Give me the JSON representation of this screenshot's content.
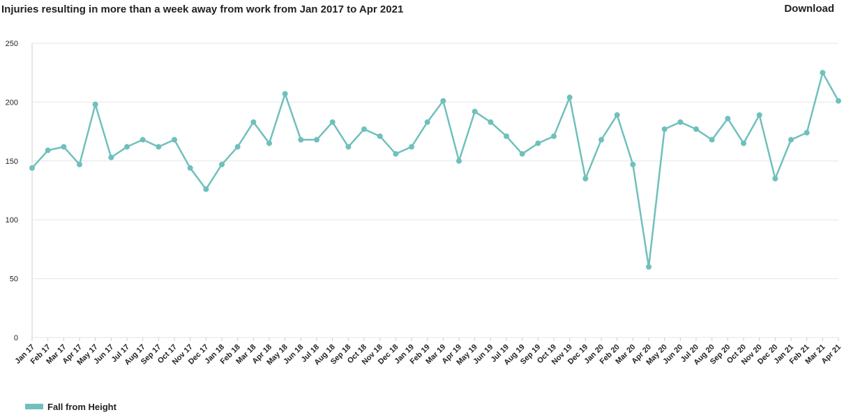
{
  "chart_data": {
    "type": "line",
    "title": "Injuries resulting in more than a week away from work from Jan 2017 to Apr 2021",
    "download": "Download",
    "categories": [
      "Jan 17",
      "Feb 17",
      "Mar 17",
      "Apr 17",
      "May 17",
      "Jun 17",
      "Jul 17",
      "Aug 17",
      "Sep 17",
      "Oct 17",
      "Nov 17",
      "Dec 17",
      "Jan 18",
      "Feb 18",
      "Mar 18",
      "Apr 18",
      "May 18",
      "Jun 18",
      "Jul 18",
      "Aug 18",
      "Sep 18",
      "Oct 18",
      "Nov 18",
      "Dec 18",
      "Jan 19",
      "Feb 19",
      "Mar 19",
      "Apr 19",
      "May 19",
      "Jun 19",
      "Jul 19",
      "Aug 19",
      "Sep 19",
      "Oct 19",
      "Nov 19",
      "Dec 19",
      "Jan 20",
      "Feb 20",
      "Mar 20",
      "Apr 20",
      "May 20",
      "Jun 20",
      "Jul 20",
      "Aug 20",
      "Sep 20",
      "Oct 20",
      "Nov 20",
      "Dec 20",
      "Jan 21",
      "Feb 21",
      "Mar 21",
      "Apr 21"
    ],
    "series": [
      {
        "name": "Fall from Height",
        "color": "#6fc0bc",
        "values": [
          144,
          159,
          162,
          147,
          198,
          153,
          162,
          168,
          162,
          168,
          144,
          126,
          147,
          162,
          183,
          165,
          207,
          168,
          168,
          183,
          162,
          177,
          171,
          156,
          162,
          183,
          201,
          150,
          192,
          183,
          171,
          156,
          165,
          171,
          204,
          135,
          168,
          189,
          147,
          60,
          177,
          183,
          177,
          168,
          186,
          165,
          189,
          135,
          168,
          174,
          225,
          201
        ]
      }
    ],
    "ylim": [
      0,
      250
    ],
    "yticks": [
      0,
      50,
      100,
      150,
      200,
      250
    ],
    "grid": true
  }
}
